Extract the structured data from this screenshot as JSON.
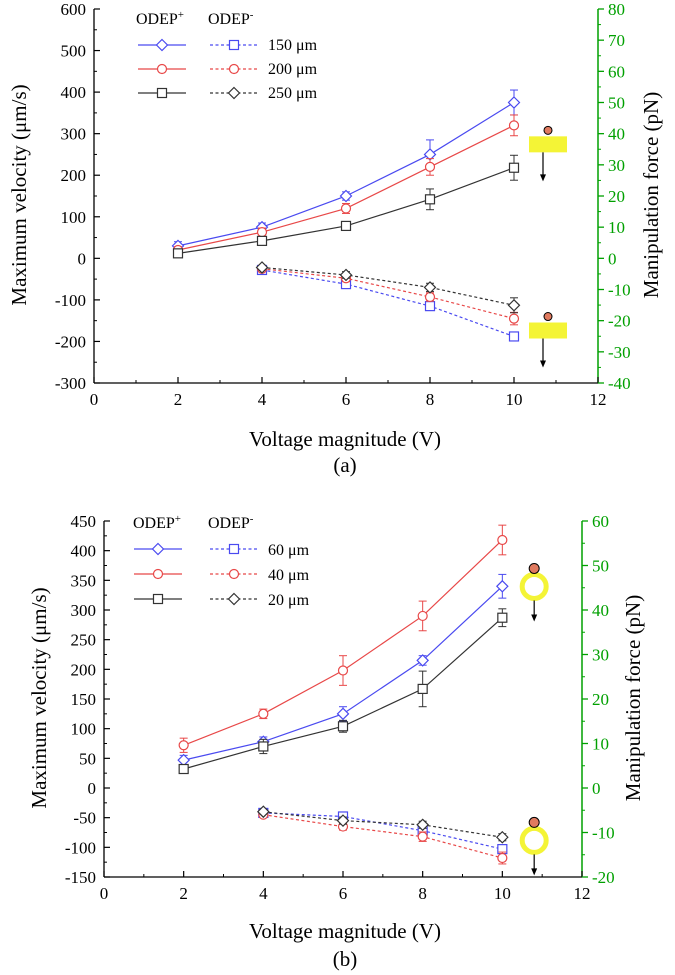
{
  "colors": {
    "axis": "#000000",
    "right_axis": "#00a000",
    "blue": "#4a4af0",
    "red": "#e84848",
    "black": "#333333",
    "highlight": "#f4f436",
    "particle": "#e07a5f"
  },
  "chart_data": [
    {
      "panel_label": "(a)",
      "type": "line",
      "xlabel": "Voltage magnitude (V)",
      "ylabel": "Maximum velocity (μm/s)",
      "y2label": "Manipulation force (pN)",
      "xlim": [
        0,
        12
      ],
      "ylim": [
        -300,
        600
      ],
      "y2lim": [
        -40,
        80
      ],
      "xticks": [
        0,
        2,
        4,
        6,
        8,
        10,
        12
      ],
      "yticks": [
        -300,
        -200,
        -100,
        0,
        100,
        200,
        300,
        400,
        500,
        600
      ],
      "y2ticks": [
        -40,
        -30,
        -20,
        -10,
        0,
        10,
        20,
        30,
        40,
        50,
        60,
        70,
        80
      ],
      "legend": {
        "header_pos": "ODEP",
        "header_pos_sup": "+",
        "header_neg": "ODEP",
        "header_neg_sup": "-",
        "labels": [
          "150 μm",
          "200 μm",
          "250 μm"
        ]
      },
      "series": [
        {
          "name": "ODEP+ 150 μm",
          "color": "blue",
          "marker": "diamond",
          "dashed": false,
          "x": [
            2,
            4,
            6,
            8,
            10
          ],
          "y": [
            30,
            75,
            150,
            250,
            375
          ],
          "err": [
            10,
            10,
            10,
            35,
            30
          ]
        },
        {
          "name": "ODEP+ 200 μm",
          "color": "red",
          "marker": "circle",
          "dashed": false,
          "x": [
            2,
            4,
            6,
            8,
            10
          ],
          "y": [
            20,
            63,
            120,
            220,
            320
          ],
          "err": [
            8,
            10,
            12,
            20,
            25
          ]
        },
        {
          "name": "ODEP+ 250 μm",
          "color": "black",
          "marker": "square",
          "dashed": false,
          "x": [
            2,
            4,
            6,
            8,
            10
          ],
          "y": [
            12,
            42,
            78,
            142,
            218
          ],
          "err": [
            5,
            8,
            10,
            25,
            30
          ]
        },
        {
          "name": "ODEP- 150 μm",
          "color": "blue",
          "marker": "square",
          "dashed": true,
          "x": [
            4,
            6,
            8,
            10
          ],
          "y": [
            -28,
            -62,
            -115,
            -188
          ],
          "err": [
            5,
            8,
            8,
            10
          ]
        },
        {
          "name": "ODEP- 200 μm",
          "color": "red",
          "marker": "circle",
          "dashed": true,
          "x": [
            4,
            6,
            8,
            10
          ],
          "y": [
            -25,
            -48,
            -93,
            -145
          ],
          "err": [
            5,
            8,
            10,
            15
          ]
        },
        {
          "name": "ODEP- 250 μm",
          "color": "black",
          "marker": "diamond",
          "dashed": true,
          "x": [
            4,
            6,
            8,
            10
          ],
          "y": [
            -22,
            -40,
            -70,
            -113
          ],
          "err": [
            5,
            8,
            10,
            18
          ]
        }
      ],
      "insets": [
        {
          "style": "bar",
          "x": 11.0,
          "y": 308
        },
        {
          "style": "bar",
          "x": 11.0,
          "y": -140
        }
      ]
    },
    {
      "panel_label": "(b)",
      "type": "line",
      "xlabel": "Voltage magnitude (V)",
      "ylabel": "Maximum velocity (μm/s)",
      "y2label": "Manipulation force (pN)",
      "xlim": [
        0,
        12
      ],
      "ylim": [
        -150,
        450
      ],
      "y2lim": [
        -20,
        60
      ],
      "xticks": [
        0,
        2,
        4,
        6,
        8,
        10,
        12
      ],
      "yticks": [
        -150,
        -100,
        -50,
        0,
        50,
        100,
        150,
        200,
        250,
        300,
        350,
        400,
        450
      ],
      "y2ticks": [
        -20,
        -10,
        0,
        10,
        20,
        30,
        40,
        50,
        60
      ],
      "legend": {
        "header_pos": "ODEP",
        "header_pos_sup": "+",
        "header_neg": "ODEP",
        "header_neg_sup": "-",
        "labels": [
          "60 μm",
          "40 μm",
          "20 μm"
        ]
      },
      "series": [
        {
          "name": "ODEP+ 60 μm",
          "color": "blue",
          "marker": "diamond",
          "dashed": false,
          "x": [
            2,
            4,
            6,
            8,
            10
          ],
          "y": [
            47,
            78,
            125,
            215,
            340
          ],
          "err": [
            8,
            8,
            12,
            8,
            20
          ]
        },
        {
          "name": "ODEP+ 40 μm",
          "color": "red",
          "marker": "circle",
          "dashed": false,
          "x": [
            2,
            4,
            6,
            8,
            10
          ],
          "y": [
            72,
            125,
            198,
            290,
            418
          ],
          "err": [
            12,
            8,
            25,
            25,
            25
          ]
        },
        {
          "name": "ODEP+ 20 μm",
          "color": "black",
          "marker": "square",
          "dashed": false,
          "x": [
            2,
            4,
            6,
            8,
            10
          ],
          "y": [
            32,
            70,
            104,
            167,
            287
          ],
          "err": [
            4,
            12,
            10,
            30,
            15
          ]
        },
        {
          "name": "ODEP- 60 μm",
          "color": "blue",
          "marker": "square",
          "dashed": true,
          "x": [
            4,
            6,
            8,
            10
          ],
          "y": [
            -42,
            -48,
            -72,
            -103
          ],
          "err": [
            4,
            6,
            8,
            6
          ]
        },
        {
          "name": "ODEP- 40 μm",
          "color": "red",
          "marker": "circle",
          "dashed": true,
          "x": [
            4,
            6,
            8,
            10
          ],
          "y": [
            -45,
            -65,
            -82,
            -118
          ],
          "err": [
            4,
            6,
            8,
            10
          ]
        },
        {
          "name": "ODEP- 20 μm",
          "color": "black",
          "marker": "diamond",
          "dashed": true,
          "x": [
            4,
            6,
            8,
            10
          ],
          "y": [
            -40,
            -55,
            -62,
            -83
          ],
          "err": [
            4,
            6,
            6,
            6
          ]
        }
      ],
      "insets": [
        {
          "style": "ring",
          "x": 10.9,
          "y": 370
        },
        {
          "style": "ring",
          "x": 10.9,
          "y": -58
        }
      ]
    }
  ]
}
